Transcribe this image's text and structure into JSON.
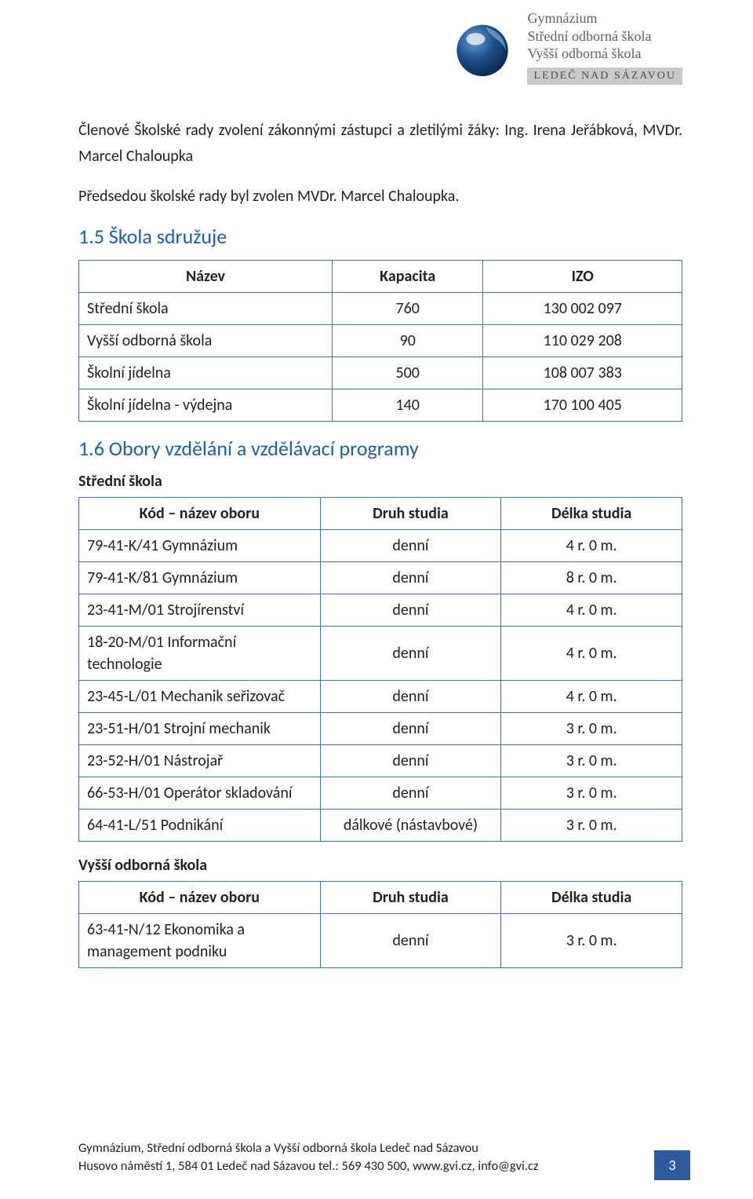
{
  "logo": {
    "lines": [
      "Gymnázium",
      "Střední odborná škola",
      "Vyšší odborná škola"
    ],
    "bar": "LEDEČ NAD SÁZAVOU",
    "sphere_color": "#1e4f8a",
    "sphere_highlight": "#b8d0e8"
  },
  "intro": {
    "p1": "Členové Školské rady zvolení zákonnými zástupci a zletilými žáky: Ing. Irena Jeřábková, MVDr. Marcel Chaloupka",
    "p2": "Předsedou školské rady byl zvolen MVDr. Marcel Chaloupka."
  },
  "section15": {
    "title": "1.5 Škola sdružuje",
    "headers": [
      "Název",
      "Kapacita",
      "IZO"
    ],
    "rows": [
      [
        "Střední škola",
        "760",
        "130 002 097"
      ],
      [
        "Vyšší odborná škola",
        "90",
        "110 029 208"
      ],
      [
        "Školní jídelna",
        "500",
        "108 007 383"
      ],
      [
        "Školní jídelna - výdejna",
        "140",
        "170 100 405"
      ]
    ]
  },
  "section16": {
    "title": "1.6 Obory vzdělání a vzdělávací programy",
    "sub1": "Střední škola",
    "headers": [
      "Kód – název oboru",
      "Druh studia",
      "Délka studia"
    ],
    "rows1": [
      [
        "79-41-K/41 Gymnázium",
        "denní",
        "4 r. 0 m."
      ],
      [
        "79-41-K/81 Gymnázium",
        "denní",
        "8 r. 0 m."
      ],
      [
        "23-41-M/01 Strojírenství",
        "denní",
        "4 r. 0 m."
      ],
      [
        "18-20-M/01 Informační technologie",
        "denní",
        "4 r. 0 m."
      ],
      [
        "23-45-L/01 Mechanik seřizovač",
        "denní",
        "4 r. 0 m."
      ],
      [
        "23-51-H/01 Strojní mechanik",
        "denní",
        "3 r. 0 m."
      ],
      [
        "23-52-H/01 Nástrojař",
        "denní",
        "3 r. 0 m."
      ],
      [
        "66-53-H/01 Operátor skladování",
        "denní",
        "3 r. 0 m."
      ],
      [
        "64-41-L/51 Podnikání",
        "dálkové (nástavbové)",
        "3 r. 0 m."
      ]
    ],
    "sub2": "Vyšší odborná škola",
    "rows2": [
      [
        "63-41-N/12 Ekonomika a management podniku",
        "denní",
        "3 r. 0 m."
      ]
    ]
  },
  "footer": {
    "line1": "Gymnázium, Střední odborná škola a Vyšší odborná škola Ledeč nad Sázavou",
    "line2": "Husovo náměstí 1, 584 01 Ledeč nad Sázavou tel.: 569 430 500, www.gvi.cz, info@gvi.cz",
    "page": "3",
    "box_color": "#2e5b9c"
  }
}
